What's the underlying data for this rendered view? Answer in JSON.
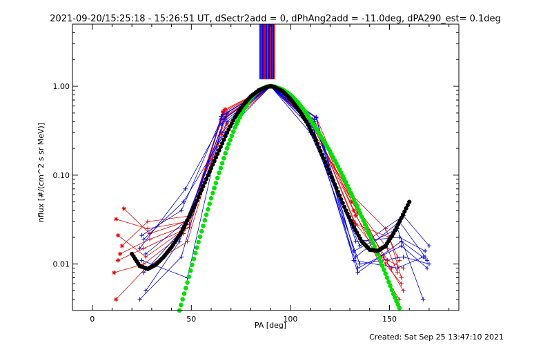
{
  "chart_data": {
    "type": "line",
    "title": "2021-09-20/15:25:18 - 15:26:51 UT, dSectr2add = 0, dPhAng2add = -11.0deg, dPA290_est=  0.1deg",
    "xlabel": "PA [deg]",
    "ylabel": "nflux [#/(cm^2 s sr MeV)]",
    "footer": "Created: Sat Sep 25 13:47:10 2021",
    "xlim": [
      -10,
      185
    ],
    "ylim": [
      0.003,
      5.0
    ],
    "yscale": "log",
    "x_ticks": [
      {
        "v": 0,
        "label": "0"
      },
      {
        "v": 50,
        "label": "50"
      },
      {
        "v": 100,
        "label": "100"
      },
      {
        "v": 150,
        "label": "150"
      }
    ],
    "y_ticks": [
      {
        "v": 0.01,
        "label": "0.01"
      },
      {
        "v": 0.1,
        "label": "0.10"
      },
      {
        "v": 1.0,
        "label": "1.00"
      }
    ],
    "colors": {
      "red_series": "#e00000",
      "blue_series": "#0000e0",
      "green_fit": "#00e000",
      "black_fit": "#000000",
      "axes": "#000000"
    },
    "vertical_lines": {
      "x": [
        84.5,
        85.0,
        85.5,
        86.0,
        86.5,
        87.0,
        87.5,
        88.0,
        88.5,
        89.0,
        89.5,
        90.0,
        90.5,
        91.0,
        91.5,
        92.0
      ],
      "colors": [
        "#e00000",
        "#0000e0",
        "#e00000",
        "#0000e0",
        "#0000e0",
        "#e00000",
        "#0000e0",
        "#0000e0",
        "#e00000",
        "#0000e0",
        "#0000e0",
        "#e00000",
        "#0000e0",
        "#0000e0",
        "#0000e0",
        "#e00000"
      ],
      "y_from": 1.2,
      "y_to": 5.0
    },
    "series": [
      {
        "color": "red",
        "x": [
          12,
          28,
          48,
          66,
          90,
          112,
          132,
          150,
          155
        ],
        "y": [
          0.032,
          0.025,
          0.03,
          0.5,
          1.0,
          0.42,
          0.04,
          0.006,
          0.004
        ]
      },
      {
        "color": "red",
        "x": [
          13,
          27,
          47,
          67,
          90,
          111,
          133,
          148,
          156
        ],
        "y": [
          0.021,
          0.012,
          0.025,
          0.55,
          1.0,
          0.4,
          0.035,
          0.01,
          0.006
        ]
      },
      {
        "color": "red",
        "x": [
          14,
          29,
          49,
          65,
          90,
          113,
          131,
          149,
          154
        ],
        "y": [
          0.013,
          0.019,
          0.028,
          0.42,
          1.0,
          0.45,
          0.05,
          0.015,
          0.008
        ]
      },
      {
        "color": "red",
        "x": [
          11,
          26,
          46,
          68,
          90,
          110,
          134,
          147,
          157
        ],
        "y": [
          0.008,
          0.01,
          0.022,
          0.38,
          1.0,
          0.35,
          0.045,
          0.012,
          0.005
        ]
      },
      {
        "color": "red",
        "x": [
          15,
          28,
          50,
          66,
          90,
          112,
          132,
          151,
          155
        ],
        "y": [
          0.016,
          0.03,
          0.035,
          0.52,
          1.0,
          0.38,
          0.03,
          0.009,
          0.011
        ]
      },
      {
        "color": "red",
        "x": [
          12,
          27,
          48,
          67,
          90,
          111,
          133,
          150,
          156
        ],
        "y": [
          0.004,
          0.009,
          0.018,
          0.45,
          1.0,
          0.43,
          0.028,
          0.02,
          0.007
        ]
      },
      {
        "color": "red",
        "x": [
          16,
          29,
          47,
          65,
          90,
          113,
          131,
          148,
          154
        ],
        "y": [
          0.042,
          0.022,
          0.03,
          0.3,
          1.0,
          0.33,
          0.06,
          0.025,
          0.012
        ]
      },
      {
        "color": "red",
        "x": [
          13,
          26,
          49,
          68,
          90,
          110,
          134,
          149,
          157
        ],
        "y": [
          0.011,
          0.015,
          0.026,
          0.48,
          1.0,
          0.4,
          0.038,
          0.011,
          0.009
        ]
      },
      {
        "color": "blue",
        "x": [
          25,
          45,
          66,
          90,
          112,
          133,
          155,
          168
        ],
        "y": [
          0.021,
          0.04,
          0.48,
          1.0,
          0.42,
          0.012,
          0.03,
          0.012
        ]
      },
      {
        "color": "blue",
        "x": [
          26,
          46,
          67,
          90,
          111,
          134,
          156,
          169
        ],
        "y": [
          0.008,
          0.025,
          0.44,
          1.0,
          0.38,
          0.008,
          0.018,
          0.011
        ]
      },
      {
        "color": "blue",
        "x": [
          24,
          47,
          65,
          90,
          113,
          132,
          154,
          167
        ],
        "y": [
          0.015,
          0.07,
          0.38,
          1.0,
          0.45,
          0.014,
          0.025,
          0.004
        ]
      },
      {
        "color": "blue",
        "x": [
          27,
          44,
          68,
          90,
          110,
          135,
          157,
          170
        ],
        "y": [
          0.005,
          0.018,
          0.5,
          1.0,
          0.35,
          0.01,
          0.012,
          0.01
        ]
      },
      {
        "color": "blue",
        "x": [
          25,
          48,
          66,
          90,
          112,
          133,
          155,
          168
        ],
        "y": [
          0.011,
          0.007,
          0.42,
          1.0,
          0.4,
          0.018,
          0.02,
          0.014
        ]
      },
      {
        "color": "blue",
        "x": [
          26,
          46,
          67,
          90,
          111,
          134,
          156,
          169
        ],
        "y": [
          0.019,
          0.05,
          0.3,
          1.0,
          0.36,
          0.009,
          0.016,
          0.009
        ]
      },
      {
        "color": "blue",
        "x": [
          24,
          45,
          65,
          90,
          113,
          132,
          154,
          167
        ],
        "y": [
          0.004,
          0.012,
          0.46,
          1.0,
          0.44,
          0.011,
          0.009,
          0.012
        ]
      },
      {
        "color": "blue",
        "x": [
          27,
          47,
          68,
          90,
          110,
          135,
          157,
          170
        ],
        "y": [
          0.013,
          0.03,
          0.4,
          1.0,
          0.3,
          0.016,
          0.035,
          0.016
        ]
      }
    ],
    "fits": [
      {
        "color": "green",
        "x": [
          44,
          48,
          52,
          56,
          60,
          64,
          68,
          72,
          76,
          80,
          84,
          88,
          90,
          92,
          96,
          100,
          104,
          108,
          112,
          116,
          120,
          124,
          128,
          132,
          136,
          140,
          144,
          148,
          152,
          155
        ],
        "y": [
          0.003,
          0.0062,
          0.0133,
          0.0269,
          0.055,
          0.106,
          0.2,
          0.345,
          0.53,
          0.74,
          0.9,
          0.99,
          1.0,
          0.99,
          0.92,
          0.8,
          0.65,
          0.5,
          0.36,
          0.26,
          0.185,
          0.125,
          0.083,
          0.053,
          0.034,
          0.021,
          0.013,
          0.0078,
          0.0046,
          0.0032
        ]
      },
      {
        "color": "black",
        "x": [
          20,
          24,
          28,
          32,
          36,
          40,
          44,
          48,
          52,
          56,
          60,
          64,
          68,
          72,
          76,
          80,
          84,
          88,
          90,
          92,
          96,
          100,
          104,
          108,
          112,
          116,
          120,
          124,
          128,
          132,
          136,
          140,
          144,
          148,
          152,
          156,
          160
        ],
        "y": [
          0.013,
          0.0095,
          0.0088,
          0.0098,
          0.012,
          0.0155,
          0.021,
          0.031,
          0.047,
          0.075,
          0.12,
          0.19,
          0.3,
          0.45,
          0.61,
          0.77,
          0.9,
          0.98,
          1.0,
          0.98,
          0.88,
          0.72,
          0.55,
          0.4,
          0.27,
          0.17,
          0.105,
          0.065,
          0.04,
          0.026,
          0.018,
          0.0145,
          0.014,
          0.016,
          0.022,
          0.033,
          0.05
        ]
      }
    ]
  }
}
